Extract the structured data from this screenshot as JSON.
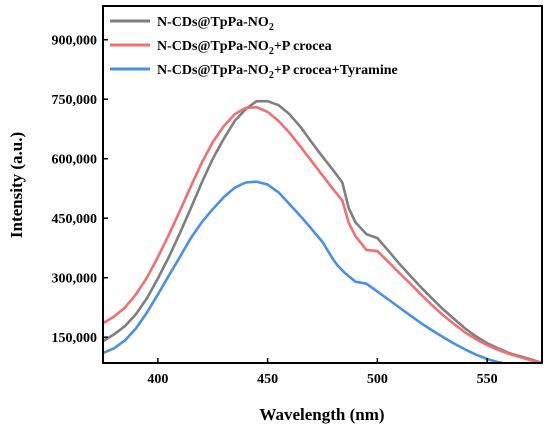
{
  "chart_data": {
    "type": "line",
    "xlabel": "Wavelength (nm)",
    "ylabel": "Intensity (a.u.)",
    "xlim": [
      375,
      575
    ],
    "ylim": [
      85000,
      985000
    ],
    "xticks": [
      400,
      450,
      500,
      550
    ],
    "xtick_labels": [
      "400",
      "450",
      "500",
      "550"
    ],
    "yticks": [
      150000,
      300000,
      450000,
      600000,
      750000,
      900000
    ],
    "ytick_labels": [
      "150,000",
      "300,000",
      "450,000",
      "600,000",
      "750,000",
      "900,000"
    ],
    "grid": false,
    "legend_position": "top-left",
    "series": [
      {
        "name": "N-CDs@TpPa-NO",
        "name_subscript": "2",
        "name_suffix": "",
        "color": "#7f7f7f",
        "x": [
          375,
          380,
          385,
          390,
          395,
          400,
          405,
          410,
          415,
          420,
          425,
          430,
          435,
          440,
          445,
          450,
          455,
          460,
          465,
          470,
          475,
          480,
          484,
          487,
          490,
          495,
          500,
          505,
          510,
          515,
          520,
          525,
          530,
          535,
          540,
          545,
          550,
          555,
          560,
          565,
          570,
          575
        ],
        "y": [
          140000,
          157000,
          178000,
          208000,
          248000,
          298000,
          352000,
          412000,
          475000,
          540000,
          600000,
          650000,
          695000,
          725000,
          745000,
          745000,
          735000,
          712000,
          680000,
          642000,
          605000,
          570000,
          540000,
          475000,
          440000,
          410000,
          400000,
          368000,
          335000,
          305000,
          275000,
          247000,
          220000,
          196000,
          172000,
          152000,
          135000,
          122000,
          110000,
          102000,
          94000,
          85000
        ]
      },
      {
        "name": "N-CDs@TpPa-NO",
        "name_subscript": "2",
        "name_suffix": "+P crocea",
        "color": "#f07070",
        "x": [
          375,
          380,
          385,
          390,
          395,
          400,
          405,
          410,
          415,
          420,
          425,
          430,
          435,
          440,
          445,
          450,
          455,
          460,
          465,
          470,
          475,
          480,
          484,
          487,
          490,
          495,
          500,
          505,
          510,
          515,
          520,
          525,
          530,
          535,
          540,
          545,
          550,
          555,
          560,
          565,
          570,
          575
        ],
        "y": [
          185000,
          202000,
          225000,
          258000,
          300000,
          352000,
          408000,
          468000,
          530000,
          590000,
          642000,
          682000,
          712000,
          728000,
          730000,
          718000,
          695000,
          665000,
          630000,
          594000,
          558000,
          522000,
          495000,
          438000,
          405000,
          370000,
          367000,
          340000,
          312000,
          285000,
          257000,
          230000,
          205000,
          183000,
          162000,
          145000,
          130000,
          118000,
          108000,
          100000,
          92000,
          84000
        ]
      },
      {
        "name": "N-CDs@TpPa-NO",
        "name_subscript": "2",
        "name_suffix": "+P crocea+Tyramine",
        "color": "#4a90e2",
        "x": [
          375,
          380,
          385,
          390,
          395,
          400,
          405,
          410,
          415,
          420,
          425,
          430,
          435,
          440,
          445,
          450,
          455,
          460,
          465,
          470,
          475,
          480,
          482,
          485,
          490,
          495,
          500,
          505,
          510,
          515,
          520,
          525,
          530,
          535,
          540,
          545,
          550,
          555,
          560
        ],
        "y": [
          110000,
          122000,
          142000,
          172000,
          212000,
          258000,
          305000,
          352000,
          400000,
          440000,
          473000,
          503000,
          527000,
          540000,
          542000,
          535000,
          515000,
          485000,
          455000,
          423000,
          390000,
          345000,
          330000,
          313000,
          290000,
          285000,
          265000,
          245000,
          225000,
          205000,
          185000,
          167000,
          150000,
          134000,
          119000,
          106000,
          95000,
          87000,
          82000
        ]
      }
    ]
  }
}
